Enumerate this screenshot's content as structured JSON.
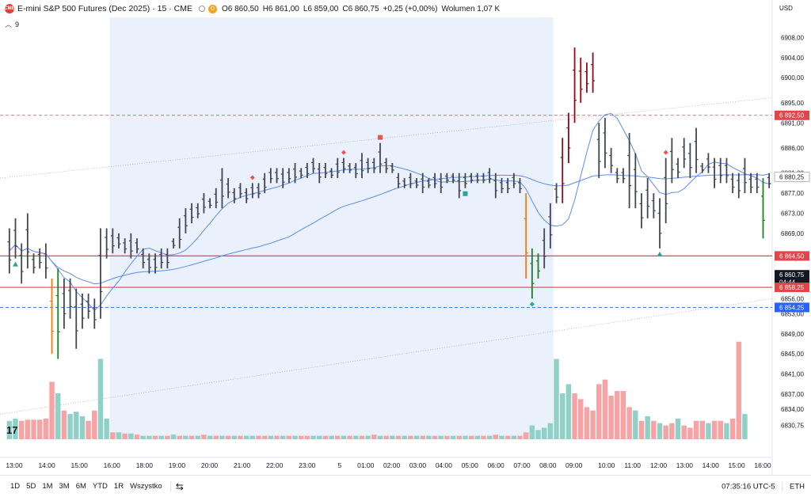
{
  "header": {
    "exchange_logo": "CME",
    "symbol": "E-mini S&P 500 Futures (Dec 2025) · 15 · CME",
    "d_badge": "D",
    "ohlc": [
      {
        "k": "O",
        "v": "6 860,50"
      },
      {
        "k": "H",
        "v": "6 861,00"
      },
      {
        "k": "L",
        "v": "6 859,00"
      },
      {
        "k": "C",
        "v": "6 860,75"
      },
      {
        "k": "",
        "v": "+0,25 (+0,00%)"
      },
      {
        "k": "Wolumen",
        "v": "1,07 K"
      }
    ],
    "indicator_count": "9",
    "currency": "USD"
  },
  "colors": {
    "bar_black": "#434651",
    "bar_darkred": "#8b0c1a",
    "bar_green": "#1e7f25",
    "bar_orange": "#f57c00",
    "vol_green": "#8fd1c6",
    "vol_red": "#f5a3a5",
    "ma_line": "#5b8def",
    "session_bg": "#eaf0fc",
    "level_red": "#e0454a",
    "level_blue": "#2962ff"
  },
  "chart_data": {
    "type": "bar",
    "title": "E-mini S&P 500 Futures (Dec 2025)",
    "interval": "15",
    "x_ticks": [
      "13:00",
      "14:00",
      "15:00",
      "16:00",
      "18:00",
      "19:00",
      "20:00",
      "21:00",
      "22:00",
      "23:00",
      "5",
      "01:00",
      "02:00",
      "03:00",
      "04:00",
      "05:00",
      "06:00",
      "07:00",
      "08:00",
      "09:00",
      "10:00",
      "11:00",
      "12:00",
      "13:00",
      "14:00",
      "15:00",
      "16:00"
    ],
    "y_ticks": [
      "6908,00",
      "6904,00",
      "6900,00",
      "6895,00",
      "6891,00",
      "6886,00",
      "6881,00",
      "6877,00",
      "6873,00",
      "6869,00",
      "6864,00",
      "6860,00",
      "6856,00",
      "6853,00",
      "6849,00",
      "6845,00",
      "6841,00",
      "6837,00",
      "6834,00",
      "6830,75"
    ],
    "ylim": [
      6828,
      6912
    ],
    "price_labels": [
      {
        "text": "6 892,50",
        "value": 6892.5,
        "color": "#e0454a"
      },
      {
        "text": "6 880,25",
        "value": 6880.25,
        "color": "#ffffff",
        "text_color": "#131722"
      },
      {
        "text": "6 864,50",
        "value": 6864.5,
        "color": "#e0454a"
      },
      {
        "text": "6 860,75",
        "value": 6860.75,
        "color": "#131722"
      },
      {
        "text": "04:44",
        "value": 6859.3,
        "color": "#131722"
      },
      {
        "text": "6 858,25",
        "value": 6858.25,
        "color": "#e0454a"
      },
      {
        "text": "6 854,25",
        "value": 6854.25,
        "color": "#2962ff"
      }
    ],
    "levels": [
      {
        "value": 6864.5,
        "style": "solid",
        "color": "#e0454a"
      },
      {
        "value": 6858.25,
        "style": "solid",
        "color": "#e0454a"
      },
      {
        "value": 6892.5,
        "style": "dashed",
        "color": "#e0454a"
      },
      {
        "value": 6854.25,
        "style": "dashed",
        "color": "#2962ff"
      }
    ],
    "bars": [
      [
        6870,
        6861,
        "k"
      ],
      [
        6872,
        6864,
        "k"
      ],
      [
        6867,
        6859,
        "k"
      ],
      [
        6873,
        6862,
        "k"
      ],
      [
        6865,
        6861,
        "k"
      ],
      [
        6866,
        6862,
        "k"
      ],
      [
        6867,
        6860,
        "k"
      ],
      [
        6860,
        6845,
        "o"
      ],
      [
        6862,
        6844,
        "g"
      ],
      [
        6860,
        6850,
        "k"
      ],
      [
        6860,
        6852,
        "k"
      ],
      [
        6858,
        6846,
        "k"
      ],
      [
        6857,
        6850,
        "k"
      ],
      [
        6857,
        6852,
        "k"
      ],
      [
        6856,
        6850,
        "k"
      ],
      [
        6870,
        6852,
        "k"
      ],
      [
        6870,
        6864,
        "k"
      ],
      [
        6870,
        6865,
        "k"
      ],
      [
        6869,
        6866,
        "k"
      ],
      [
        6868,
        6865,
        "k"
      ],
      [
        6869,
        6864,
        "k"
      ],
      [
        6868,
        6865,
        "k"
      ],
      [
        6866,
        6862,
        "k"
      ],
      [
        6865,
        6861,
        "k"
      ],
      [
        6865,
        6861,
        "k"
      ],
      [
        6866,
        6862,
        "k"
      ],
      [
        6866,
        6862,
        "k"
      ],
      [
        6868,
        6866,
        "k"
      ],
      [
        6872,
        6866,
        "k"
      ],
      [
        6874,
        6869,
        "k"
      ],
      [
        6875,
        6871,
        "k"
      ],
      [
        6875,
        6872,
        "k"
      ],
      [
        6877,
        6873,
        "k"
      ],
      [
        6876,
        6874,
        "k"
      ],
      [
        6878,
        6874,
        "k"
      ],
      [
        6882,
        6874,
        "k"
      ],
      [
        6880,
        6876,
        "k"
      ],
      [
        6878,
        6875,
        "k"
      ],
      [
        6879,
        6876,
        "k"
      ],
      [
        6878,
        6875,
        "k"
      ],
      [
        6879,
        6876,
        "k"
      ],
      [
        6879,
        6876,
        "k"
      ],
      [
        6881,
        6877,
        "k"
      ],
      [
        6882,
        6879,
        "k"
      ],
      [
        6882,
        6879,
        "k"
      ],
      [
        6882,
        6878,
        "k"
      ],
      [
        6882,
        6879,
        "k"
      ],
      [
        6883,
        6879,
        "k"
      ],
      [
        6882,
        6880,
        "k"
      ],
      [
        6883,
        6880,
        "k"
      ],
      [
        6884,
        6881,
        "k"
      ],
      [
        6883,
        6879,
        "k"
      ],
      [
        6883,
        6880,
        "k"
      ],
      [
        6882,
        6880,
        "k"
      ],
      [
        6884,
        6880,
        "k"
      ],
      [
        6884,
        6881,
        "k"
      ],
      [
        6883,
        6881,
        "k"
      ],
      [
        6883,
        6880,
        "k"
      ],
      [
        6885,
        6880,
        "k"
      ],
      [
        6884,
        6881,
        "k"
      ],
      [
        6884,
        6881,
        "k"
      ],
      [
        6887,
        6881,
        "k"
      ],
      [
        6884,
        6881,
        "k"
      ],
      [
        6883,
        6881,
        "k"
      ],
      [
        6881,
        6878,
        "k"
      ],
      [
        6880,
        6878,
        "k"
      ],
      [
        6881,
        6878,
        "k"
      ],
      [
        6880,
        6878,
        "k"
      ],
      [
        6881,
        6877,
        "k"
      ],
      [
        6880,
        6878,
        "k"
      ],
      [
        6881,
        6878,
        "k"
      ],
      [
        6881,
        6877,
        "k"
      ],
      [
        6881,
        6879,
        "k"
      ],
      [
        6881,
        6879,
        "k"
      ],
      [
        6881,
        6876,
        "k"
      ],
      [
        6881,
        6878,
        "k"
      ],
      [
        6881,
        6879,
        "k"
      ],
      [
        6881,
        6879,
        "k"
      ],
      [
        6881,
        6879,
        "k"
      ],
      [
        6882,
        6879,
        "k"
      ],
      [
        6881,
        6876,
        "k"
      ],
      [
        6880,
        6877,
        "k"
      ],
      [
        6880,
        6877,
        "k"
      ],
      [
        6881,
        6878,
        "k"
      ],
      [
        6880,
        6877,
        "k"
      ],
      [
        6877,
        6860,
        "o"
      ],
      [
        6866,
        6856,
        "g"
      ],
      [
        6865,
        6860,
        "g"
      ],
      [
        6870,
        6862,
        "k"
      ],
      [
        6875,
        6866,
        "k"
      ],
      [
        6879,
        6875,
        "k"
      ],
      [
        6888,
        6875,
        "dr"
      ],
      [
        6893,
        6883,
        "dr"
      ],
      [
        6906,
        6891,
        "dr"
      ],
      [
        6904,
        6895,
        "dr"
      ],
      [
        6903,
        6897,
        "dr"
      ],
      [
        6905,
        6897,
        "dr"
      ],
      [
        6891,
        6880,
        "k"
      ],
      [
        6892,
        6882,
        "k"
      ],
      [
        6886,
        6881,
        "k"
      ],
      [
        6882,
        6879,
        "k"
      ],
      [
        6882,
        6879,
        "k"
      ],
      [
        6889,
        6874,
        "k"
      ],
      [
        6885,
        6874,
        "k"
      ],
      [
        6877,
        6870,
        "k"
      ],
      [
        6880,
        6872,
        "k"
      ],
      [
        6877,
        6872,
        "k"
      ],
      [
        6876,
        6866,
        "k"
      ],
      [
        6884,
        6871,
        "k"
      ],
      [
        6888,
        6879,
        "k"
      ],
      [
        6884,
        6880,
        "k"
      ],
      [
        6888,
        6882,
        "k"
      ],
      [
        6887,
        6880,
        "k"
      ],
      [
        6890,
        6881,
        "k"
      ],
      [
        6883,
        6881,
        "k"
      ],
      [
        6885,
        6881,
        "k"
      ],
      [
        6884,
        6878,
        "k"
      ],
      [
        6884,
        6879,
        "k"
      ],
      [
        6884,
        6879,
        "k"
      ],
      [
        6881,
        6877,
        "k"
      ],
      [
        6881,
        6876,
        "k"
      ],
      [
        6884,
        6877,
        "k"
      ],
      [
        6881,
        6877,
        "k"
      ],
      [
        6881,
        6877,
        "k"
      ],
      [
        6880,
        6868,
        "g"
      ],
      [
        6881,
        6878,
        "k"
      ]
    ],
    "volume": [
      [
        16,
        "g"
      ],
      [
        18,
        "g"
      ],
      [
        16,
        "r"
      ],
      [
        17,
        "r"
      ],
      [
        17,
        "r"
      ],
      [
        17,
        "r"
      ],
      [
        18,
        "r"
      ],
      [
        50,
        "r"
      ],
      [
        40,
        "g"
      ],
      [
        25,
        "r"
      ],
      [
        22,
        "g"
      ],
      [
        24,
        "g"
      ],
      [
        20,
        "g"
      ],
      [
        16,
        "r"
      ],
      [
        25,
        "r"
      ],
      [
        70,
        "g"
      ],
      [
        18,
        "g"
      ],
      [
        6,
        "r"
      ],
      [
        6,
        "g"
      ],
      [
        5,
        "r"
      ],
      [
        5,
        "g"
      ],
      [
        4,
        "r"
      ],
      [
        3,
        "g"
      ],
      [
        3,
        "g"
      ],
      [
        3,
        "r"
      ],
      [
        3,
        "g"
      ],
      [
        3,
        "r"
      ],
      [
        4,
        "g"
      ],
      [
        3,
        "r"
      ],
      [
        3,
        "g"
      ],
      [
        3,
        "r"
      ],
      [
        3,
        "g"
      ],
      [
        4,
        "r"
      ],
      [
        3,
        "g"
      ],
      [
        3,
        "r"
      ],
      [
        3,
        "g"
      ],
      [
        3,
        "r"
      ],
      [
        3,
        "g"
      ],
      [
        3,
        "r"
      ],
      [
        3,
        "g"
      ],
      [
        3,
        "g"
      ],
      [
        3,
        "r"
      ],
      [
        3,
        "r"
      ],
      [
        3,
        "g"
      ],
      [
        3,
        "r"
      ],
      [
        3,
        "g"
      ],
      [
        3,
        "r"
      ],
      [
        3,
        "g"
      ],
      [
        3,
        "r"
      ],
      [
        3,
        "r"
      ],
      [
        3,
        "g"
      ],
      [
        3,
        "g"
      ],
      [
        3,
        "r"
      ],
      [
        3,
        "g"
      ],
      [
        3,
        "r"
      ],
      [
        3,
        "g"
      ],
      [
        3,
        "r"
      ],
      [
        3,
        "g"
      ],
      [
        3,
        "r"
      ],
      [
        3,
        "g"
      ],
      [
        4,
        "r"
      ],
      [
        3,
        "g"
      ],
      [
        3,
        "r"
      ],
      [
        3,
        "g"
      ],
      [
        3,
        "r"
      ],
      [
        3,
        "g"
      ],
      [
        3,
        "r"
      ],
      [
        3,
        "g"
      ],
      [
        3,
        "r"
      ],
      [
        3,
        "g"
      ],
      [
        3,
        "r"
      ],
      [
        3,
        "g"
      ],
      [
        3,
        "r"
      ],
      [
        3,
        "g"
      ],
      [
        3,
        "r"
      ],
      [
        3,
        "g"
      ],
      [
        3,
        "r"
      ],
      [
        3,
        "g"
      ],
      [
        3,
        "r"
      ],
      [
        3,
        "g"
      ],
      [
        4,
        "r"
      ],
      [
        3,
        "g"
      ],
      [
        3,
        "r"
      ],
      [
        3,
        "g"
      ],
      [
        3,
        "r"
      ],
      [
        6,
        "r"
      ],
      [
        12,
        "g"
      ],
      [
        8,
        "g"
      ],
      [
        10,
        "g"
      ],
      [
        14,
        "g"
      ],
      [
        70,
        "g"
      ],
      [
        40,
        "g"
      ],
      [
        48,
        "g"
      ],
      [
        40,
        "r"
      ],
      [
        35,
        "r"
      ],
      [
        28,
        "r"
      ],
      [
        25,
        "r"
      ],
      [
        48,
        "r"
      ],
      [
        52,
        "r"
      ],
      [
        38,
        "r"
      ],
      [
        42,
        "r"
      ],
      [
        42,
        "r"
      ],
      [
        28,
        "r"
      ],
      [
        25,
        "g"
      ],
      [
        16,
        "r"
      ],
      [
        20,
        "g"
      ],
      [
        16,
        "r"
      ],
      [
        14,
        "g"
      ],
      [
        12,
        "r"
      ],
      [
        14,
        "r"
      ],
      [
        18,
        "g"
      ],
      [
        12,
        "r"
      ],
      [
        10,
        "r"
      ],
      [
        16,
        "r"
      ],
      [
        16,
        "r"
      ],
      [
        14,
        "g"
      ],
      [
        16,
        "r"
      ],
      [
        16,
        "r"
      ],
      [
        14,
        "g"
      ],
      [
        18,
        "r"
      ],
      [
        85,
        "r"
      ],
      [
        22,
        "g"
      ]
    ],
    "markers": [
      {
        "bar": 1,
        "type": "triangle-up",
        "color": "#26a69a",
        "pos": "below"
      },
      {
        "bar": 40,
        "type": "diamond",
        "color": "#ef5350",
        "pos": "above"
      },
      {
        "bar": 55,
        "type": "diamond",
        "color": "#ef5350",
        "pos": "above"
      },
      {
        "bar": 61,
        "type": "square",
        "color": "#ef5350",
        "pos": "above"
      },
      {
        "bar": 75,
        "type": "square",
        "color": "#26a69a",
        "pos": "below"
      },
      {
        "bar": 86,
        "type": "diamond",
        "color": "#26a69a",
        "pos": "below"
      },
      {
        "bar": 107,
        "type": "triangle-up",
        "color": "#26a69a",
        "pos": "below"
      },
      {
        "bar": 108,
        "type": "diamond",
        "color": "#ef5350",
        "pos": "above"
      }
    ]
  },
  "footer": {
    "ranges": [
      "1D",
      "5D",
      "1M",
      "3M",
      "6M",
      "YTD",
      "1R",
      "Wszystko"
    ],
    "clock": "07:35:16 UTC-5",
    "session": "ETH",
    "tv_logo": "17"
  }
}
